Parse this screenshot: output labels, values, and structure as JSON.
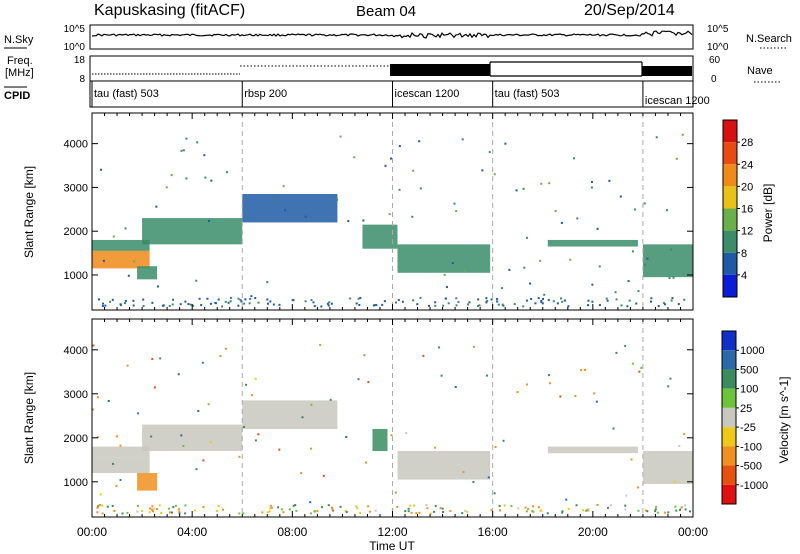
{
  "header": {
    "station": "Kapuskasing (fitACF)",
    "beam": "Beam 04",
    "date": "20/Sep/2014"
  },
  "noise_panel": {
    "left_label": "N.Sky",
    "left_ticks": [
      "10^5",
      "10^0"
    ],
    "right_ticks": [
      "10^5",
      "10^0"
    ],
    "right_legend": "N.Search"
  },
  "freq_panel": {
    "left_label_1": "Freq.",
    "left_label_2": "[MHz]",
    "left_ticks": [
      "18",
      "8"
    ],
    "right_ticks": [
      "60",
      "0"
    ],
    "right_legend": "Nave"
  },
  "cpid_panel": {
    "label": "CPID",
    "segments": [
      {
        "label": "tau (fast) 503",
        "start": 0,
        "end": 6
      },
      {
        "label": "rbsp 200",
        "start": 6,
        "end": 12
      },
      {
        "label": "icescan 1200",
        "start": 12,
        "end": 16
      },
      {
        "label": "tau (fast) 503",
        "start": 16,
        "end": 22
      },
      {
        "label": "icescan 1200",
        "start": 22,
        "end": 24
      }
    ]
  },
  "power_panel": {
    "ylabel": "Slant Range [km]",
    "yticks": [
      "1000",
      "2000",
      "3000",
      "4000"
    ],
    "colorbar_label": "Power [dB]",
    "colorbar_ticks": [
      "4",
      "8",
      "12",
      "16",
      "20",
      "24",
      "28"
    ],
    "colorbar_colors": [
      "#0a1cd8",
      "#1e5aa5",
      "#3a8c6a",
      "#6ab04a",
      "#e8c21a",
      "#f08a18",
      "#e84a12",
      "#d81010"
    ]
  },
  "velocity_panel": {
    "ylabel": "Slant Range [km]",
    "yticks": [
      "1000",
      "2000",
      "3000",
      "4000"
    ],
    "colorbar_label": "Velocity [m s^-1]",
    "colorbar_ticks": [
      "1000",
      "500",
      "100",
      "25",
      "-25",
      "-100",
      "-500",
      "-1000"
    ],
    "colorbar_colors": [
      "#1030c8",
      "#2a6aa8",
      "#3a8c60",
      "#6cc43a",
      "#c8c8c0",
      "#f0c818",
      "#f09020",
      "#e85010",
      "#e01010"
    ]
  },
  "x_axis": {
    "label": "Time UT",
    "ticks": [
      "00:00",
      "04:00",
      "08:00",
      "12:00",
      "16:00",
      "20:00",
      "00:00"
    ]
  },
  "chart_data": [
    {
      "type": "heatmap",
      "title": "Power",
      "xlabel": "Time UT",
      "ylabel": "Slant Range [km]",
      "xlim": [
        0,
        24
      ],
      "ylim": [
        200,
        4700
      ],
      "colorbar": {
        "label": "Power [dB]",
        "range": [
          0,
          32
        ]
      },
      "bands": [
        {
          "t0": 0.0,
          "t1": 2.3,
          "r0": 1550,
          "r1": 1800,
          "value": 10
        },
        {
          "t0": 0.0,
          "t1": 2.3,
          "r0": 1150,
          "r1": 1550,
          "value": 20
        },
        {
          "t0": 1.8,
          "t1": 2.6,
          "r0": 900,
          "r1": 1200,
          "value": 8
        },
        {
          "t0": 2.0,
          "t1": 6.0,
          "r0": 1700,
          "r1": 2300,
          "value": 10
        },
        {
          "t0": 6.0,
          "t1": 9.8,
          "r0": 2200,
          "r1": 2850,
          "value": 6
        },
        {
          "t0": 10.8,
          "t1": 12.2,
          "r0": 1600,
          "r1": 2150,
          "value": 8
        },
        {
          "t0": 12.2,
          "t1": 15.9,
          "r0": 1050,
          "r1": 1700,
          "value": 10
        },
        {
          "t0": 18.2,
          "t1": 21.8,
          "r0": 1650,
          "r1": 1800,
          "value": 8
        },
        {
          "t0": 22.0,
          "t1": 24.0,
          "r0": 950,
          "r1": 1700,
          "value": 10
        }
      ]
    },
    {
      "type": "heatmap",
      "title": "Velocity",
      "xlabel": "Time UT",
      "ylabel": "Slant Range [km]",
      "xlim": [
        0,
        24
      ],
      "ylim": [
        200,
        4700
      ],
      "colorbar": {
        "label": "Velocity [m s^-1]",
        "range": [
          -1000,
          1000
        ]
      },
      "bands": [
        {
          "t0": 0.0,
          "t1": 2.3,
          "r0": 1550,
          "r1": 1800,
          "value": 0
        },
        {
          "t0": 0.0,
          "t1": 2.3,
          "r0": 1200,
          "r1": 1550,
          "value": 0
        },
        {
          "t0": 1.8,
          "t1": 2.6,
          "r0": 800,
          "r1": 1200,
          "value": -300
        },
        {
          "t0": 2.0,
          "t1": 6.0,
          "r0": 1700,
          "r1": 2300,
          "value": 0
        },
        {
          "t0": 6.0,
          "t1": 9.8,
          "r0": 2200,
          "r1": 2850,
          "value": 0
        },
        {
          "t0": 11.2,
          "t1": 11.8,
          "r0": 1700,
          "r1": 2200,
          "value": 300
        },
        {
          "t0": 12.2,
          "t1": 15.9,
          "r0": 1050,
          "r1": 1700,
          "value": 0
        },
        {
          "t0": 18.2,
          "t1": 21.8,
          "r0": 1650,
          "r1": 1800,
          "value": 0
        },
        {
          "t0": 22.0,
          "t1": 24.0,
          "r0": 950,
          "r1": 1700,
          "value": 0
        }
      ]
    }
  ]
}
